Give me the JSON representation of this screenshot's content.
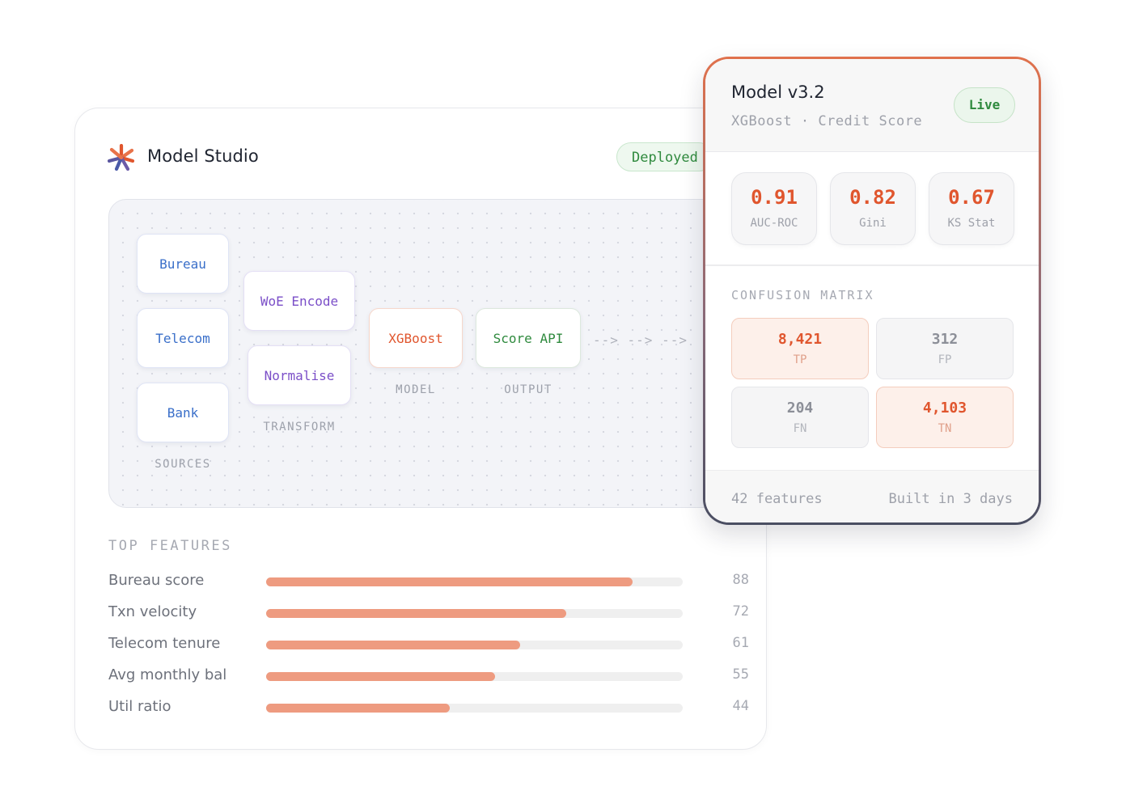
{
  "studio": {
    "title": "Model Studio",
    "status_badge": "Deployed",
    "pipeline": {
      "sources": {
        "label": "SOURCES",
        "nodes": [
          "Bureau",
          "Telecom",
          "Bank"
        ]
      },
      "transform": {
        "label": "TRANSFORM",
        "nodes": [
          "WoE Encode",
          "Normalise"
        ]
      },
      "model": {
        "label": "MODEL",
        "node": "XGBoost"
      },
      "output": {
        "label": "OUTPUT",
        "node": "Score API"
      },
      "connector": "--> --> -->"
    },
    "top_features": {
      "heading": "TOP FEATURES",
      "max": 100,
      "items": [
        {
          "name": "Bureau score",
          "value": 88
        },
        {
          "name": "Txn velocity",
          "value": 72
        },
        {
          "name": "Telecom tenure",
          "value": 61
        },
        {
          "name": "Avg monthly bal",
          "value": 55
        },
        {
          "name": "Util ratio",
          "value": 44
        }
      ]
    }
  },
  "model_card": {
    "title": "Model v3.2",
    "subtitle": "XGBoost · Credit Score",
    "status": "Live",
    "metrics": [
      {
        "value": "0.91",
        "label": "AUC-ROC"
      },
      {
        "value": "0.82",
        "label": "Gini"
      },
      {
        "value": "0.67",
        "label": "KS Stat"
      }
    ],
    "confusion_matrix": {
      "heading": "CONFUSION MATRIX",
      "cells": [
        {
          "value": "8,421",
          "label": "TP"
        },
        {
          "value": "312",
          "label": "FP"
        },
        {
          "value": "204",
          "label": "FN"
        },
        {
          "value": "4,103",
          "label": "TN"
        }
      ]
    },
    "footer": {
      "features": "42 features",
      "built": "Built in 3 days"
    }
  },
  "colors": {
    "accent": "#e0562e",
    "bar_fill": "#ee9b80",
    "live_green": "#2f8a3e",
    "source_blue": "#3a6fc9",
    "transform_purple": "#7b4fc8"
  },
  "icons": {
    "logo": "asterisk-logo-icon"
  }
}
